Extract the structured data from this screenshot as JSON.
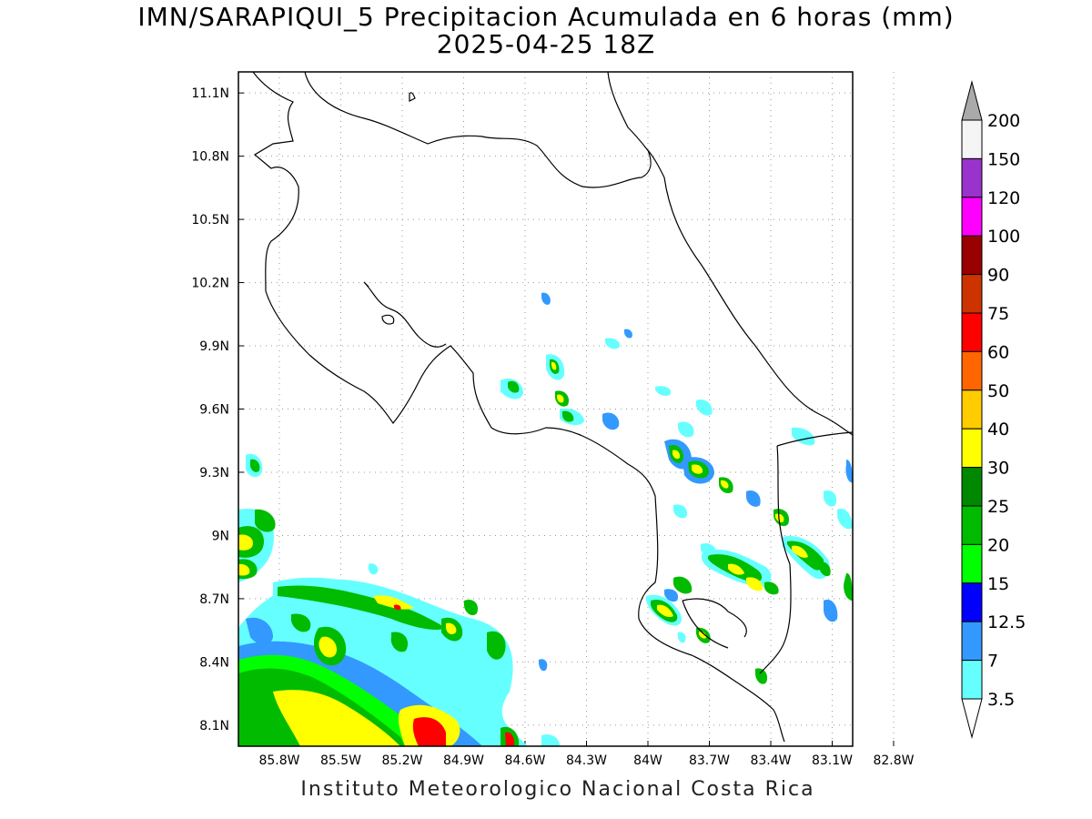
{
  "title": {
    "line1": "IMN/SARAPIQUI_5 Precipitacion Acumulada en 6 horas (mm)",
    "line2": "2025-04-25 18Z"
  },
  "credit": "Instituto Meteorologico Nacional Costa Rica",
  "map": {
    "lon_range": [
      -86.0,
      -83.0
    ],
    "lat_range": [
      8.0,
      11.2
    ],
    "x_ticks": [
      "85.8W",
      "85.5W",
      "85.2W",
      "84.9W",
      "84.6W",
      "84.3W",
      "84W",
      "83.7W",
      "83.4W",
      "83.1W",
      "82.8W"
    ],
    "y_ticks": [
      "11.1N",
      "10.8N",
      "10.5N",
      "10.2N",
      "9.9N",
      "9.6N",
      "9.3N",
      "9N",
      "8.7N",
      "8.4N",
      "8.1N"
    ],
    "grid": true,
    "grid_style": "dotted"
  },
  "colorbar": {
    "levels": [
      "200",
      "150",
      "120",
      "100",
      "90",
      "75",
      "60",
      "50",
      "40",
      "30",
      "25",
      "20",
      "15",
      "12.5",
      "7",
      "3.5"
    ],
    "colors": [
      "#f5f5f5",
      "#9933cc",
      "#ff00ff",
      "#990000",
      "#cc3300",
      "#ff0000",
      "#ff6600",
      "#ffcc00",
      "#ffff00",
      "#008800",
      "#00bb00",
      "#00ff00",
      "#0000ff",
      "#3399ff",
      "#66ffff"
    ],
    "over_color": "#aaaaaa",
    "under_color": "#ffffff"
  }
}
